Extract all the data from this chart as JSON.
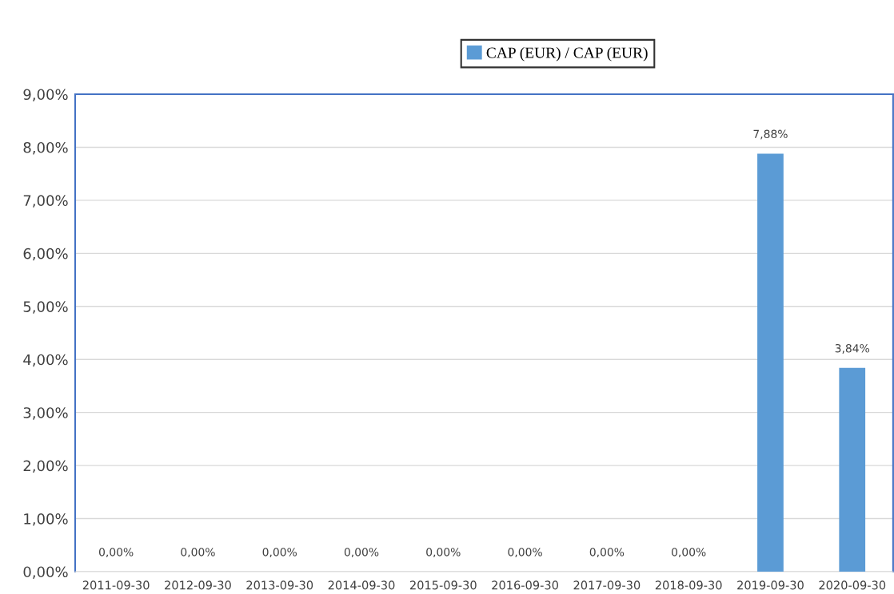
{
  "chart_data": {
    "type": "bar",
    "categories": [
      "2011-09-30",
      "2012-09-30",
      "2013-09-30",
      "2014-09-30",
      "2015-09-30",
      "2016-09-30",
      "2017-09-30",
      "2018-09-30",
      "2019-09-30",
      "2020-09-30"
    ],
    "series": [
      {
        "name": "CAP (EUR) / CAP (EUR)",
        "color": "#5b9bd5",
        "values": [
          0,
          0,
          0,
          0,
          0,
          0,
          0,
          0,
          7.88,
          3.84
        ],
        "value_labels": [
          "0,00%",
          "0,00%",
          "0,00%",
          "0,00%",
          "0,00%",
          "0,00%",
          "0,00%",
          "0,00%",
          "7,88%",
          "3,84%"
        ]
      }
    ],
    "ylim": [
      0,
      9
    ],
    "yticks": [
      {
        "value": 0,
        "label": "0,00%"
      },
      {
        "value": 1,
        "label": "1,00%"
      },
      {
        "value": 2,
        "label": "2,00%"
      },
      {
        "value": 3,
        "label": "3,00%"
      },
      {
        "value": 4,
        "label": "4,00%"
      },
      {
        "value": 5,
        "label": "5,00%"
      },
      {
        "value": 6,
        "label": "6,00%"
      },
      {
        "value": 7,
        "label": "7,00%"
      },
      {
        "value": 8,
        "label": "8,00%"
      },
      {
        "value": 9,
        "label": "9,00%"
      }
    ],
    "grid": "y",
    "legend": "top"
  }
}
